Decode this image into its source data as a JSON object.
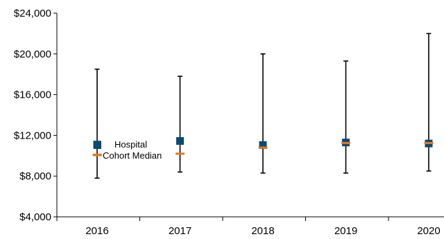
{
  "chart_data": {
    "type": "scatter",
    "categories": [
      "2016",
      "2017",
      "2018",
      "2019",
      "2020"
    ],
    "ylim": [
      4000,
      24000
    ],
    "y_ticks": [
      4000,
      8000,
      12000,
      16000,
      20000,
      24000
    ],
    "y_tick_labels": [
      "$4,000",
      "$8,000",
      "$12,000",
      "$16,000",
      "$20,000",
      "$24,000"
    ],
    "range_low": [
      7800,
      8400,
      8300,
      8300,
      8500
    ],
    "range_high": [
      18500,
      17800,
      20000,
      19300,
      22000
    ],
    "series": [
      {
        "name": "Hospital",
        "values": [
          11100,
          11450,
          11050,
          11300,
          11200
        ],
        "color": "#0a4a73",
        "marker": "square"
      },
      {
        "name": "Cohort Median",
        "values": [
          10100,
          10200,
          10800,
          11250,
          11250
        ],
        "color": "#e87722",
        "marker": "dash"
      }
    ],
    "legend_position": "inside-left",
    "grid": false
  }
}
